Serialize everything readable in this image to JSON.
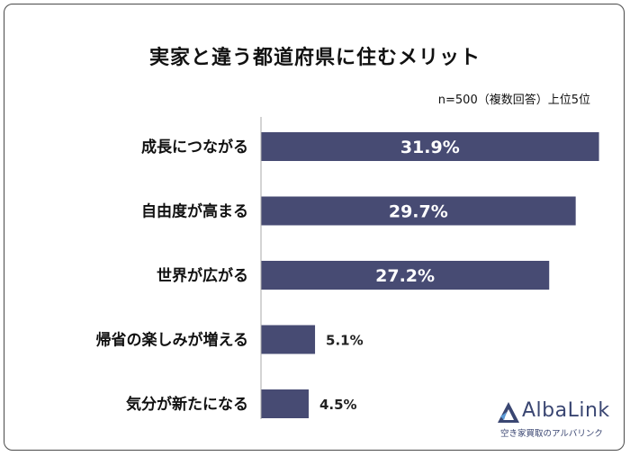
{
  "title": "実家と違う都道府県に住むメリット",
  "note": "n=500（複数回答）上位5位",
  "brand": {
    "name": "AlbaLink",
    "tagline": "空き家買取のアルバリンク",
    "color": "#3a4672"
  },
  "colors": {
    "bar": "#474b73",
    "inside_label": "#ffffff",
    "outside_label": "#222222",
    "axis": "#aaaaaa"
  },
  "chart_data": {
    "type": "bar",
    "orientation": "horizontal",
    "categories": [
      "成長につながる",
      "自由度が高まる",
      "世界が広がる",
      "帰省の楽しみが増える",
      "気分が新たになる"
    ],
    "values": [
      31.9,
      29.7,
      27.2,
      5.1,
      4.5
    ],
    "value_labels": [
      "31.9%",
      "29.7%",
      "27.2%",
      "5.1%",
      "4.5%"
    ],
    "title": "実家と違う都道府県に住むメリット",
    "xlabel": "",
    "ylabel": "",
    "xlim": [
      0,
      34.4
    ],
    "grid": false,
    "legend": "none"
  }
}
